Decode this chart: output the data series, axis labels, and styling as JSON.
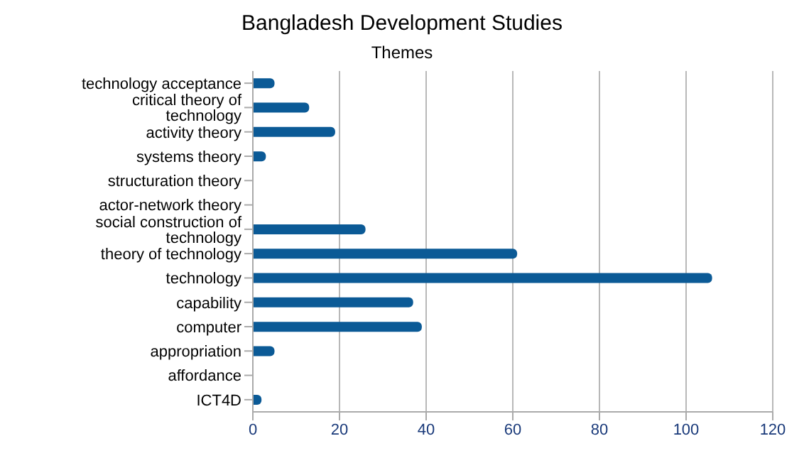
{
  "chart_data": {
    "type": "bar",
    "orientation": "horizontal",
    "title": "Bangladesh Development Studies",
    "subtitle": "Themes",
    "categories": [
      "technology acceptance",
      "critical theory of technology",
      "activity theory",
      "systems theory",
      "structuration theory",
      "actor-network theory",
      "social construction of technology",
      "theory of technology",
      "technology",
      "capability",
      "computer",
      "appropriation",
      "affordance",
      "ICT4D"
    ],
    "values": [
      5,
      13,
      19,
      3,
      0,
      0,
      26,
      61,
      106,
      37,
      39,
      5,
      0,
      2
    ],
    "color": "#0b5a96",
    "xlim": [
      0,
      120
    ],
    "xticks": [
      0,
      20,
      40,
      60,
      80,
      100,
      120
    ],
    "grid": "x"
  }
}
